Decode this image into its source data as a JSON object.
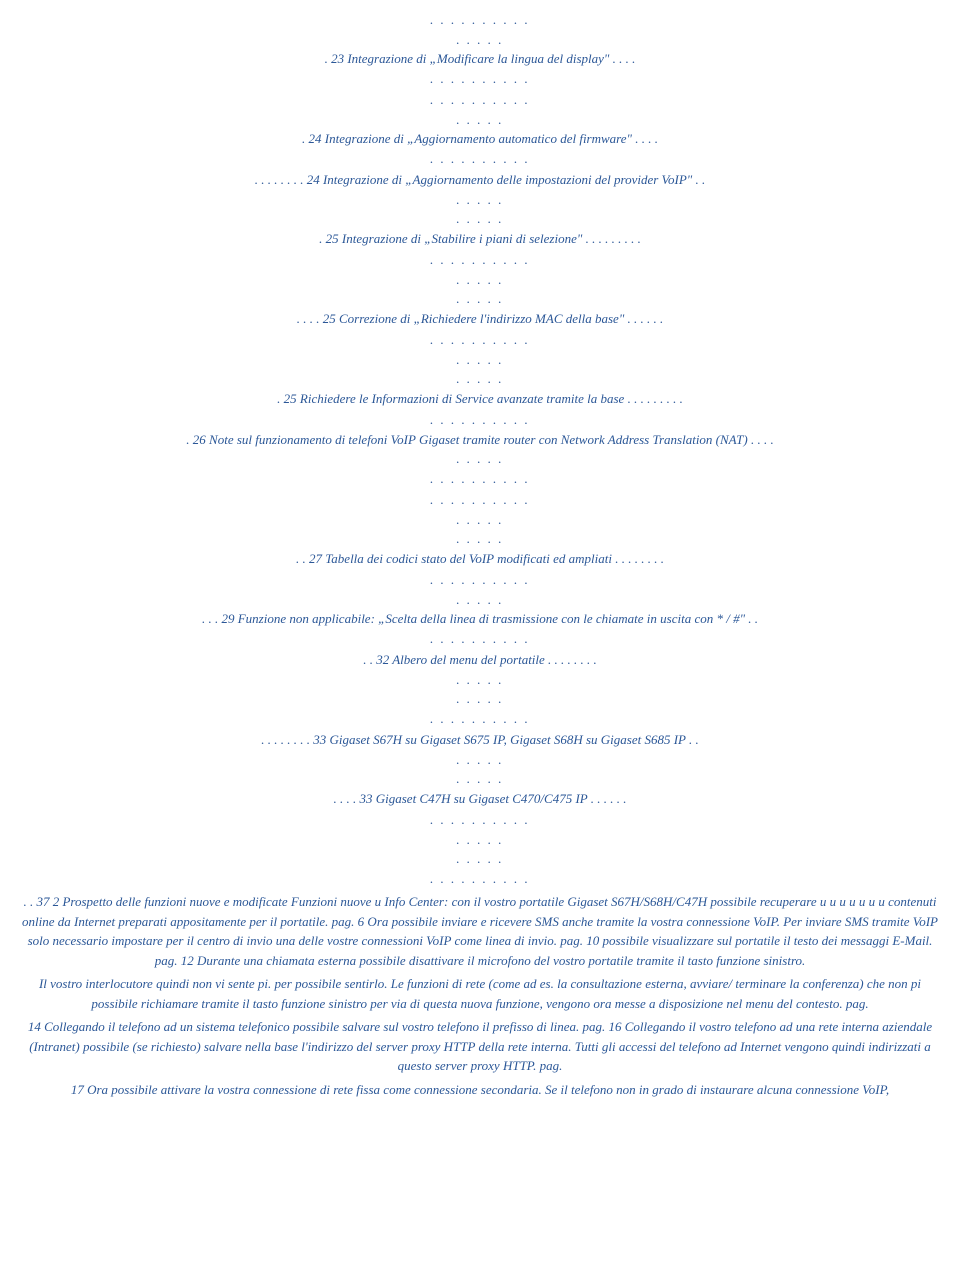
{
  "dots": {
    "long": ". . . . . . . . . .",
    "short": ". . . . ."
  },
  "toc": {
    "line1": ". 23 Integrazione di „Modificare la lingua del display\" . . . .",
    "line2": ". 24 Integrazione di „Aggiornamento automatico del firmware\" . . . .",
    "line3": ". . . . . . . . 24 Integrazione di „Aggiornamento delle impostazioni del provider VoIP\" . .",
    "line4": ". 25 Integrazione di „Stabilire i piani di selezione\" . . . . . . . . .",
    "line5": ". . . . 25 Correzione di „Richiedere l'indirizzo MAC della base\" . . . . . .",
    "line6": ". 25 Richiedere le Informazioni di Service avanzate tramite la base . . . . . . . . .",
    "line7": ". 26 Note sul funzionamento di telefoni VoIP Gigaset tramite router con Network Address Translation (NAT) . . . .",
    "line8": ". . 27 Tabella dei codici stato del VoIP modificati ed ampliati . . . . . . . .",
    "line9": ". . . 29 Funzione non applicabile: „Scelta della linea di trasmissione con le chiamate in uscita con * / #\" . .",
    "line10": ". . 32 Albero del menu del portatile . . . . . . . .",
    "line11": ". . . . . . . . 33 Gigaset S67H su Gigaset S675 IP, Gigaset S68H su Gigaset S685 IP . .",
    "line12": ". . . . 33 Gigaset C47H su Gigaset C470/C475 IP . . . . . ."
  },
  "body": {
    "para1": ". . 37 2 Prospetto delle funzioni nuove e modificate Funzioni nuove u Info Center: con il vostro portatile Gigaset S67H/S68H/C47H possibile recuperare u u u u u u u contenuti online da Internet preparati appositamente per il portatile. pag. 6 Ora possibile inviare e ricevere SMS anche tramite la vostra connessione VoIP. Per inviare SMS tramite VoIP solo necessario impostare per il centro di invio una delle vostre connessioni VoIP come linea di invio. pag. 10 possibile visualizzare sul portatile il testo dei messaggi E-Mail. pag. 12 Durante una chiamata esterna possibile disattivare il microfono del vostro portatile tramite il tasto funzione sinistro.",
    "para2": "Il vostro interlocutore quindi non vi sente pi. per possibile sentirlo. Le funzioni di rete (come ad es. la consultazione esterna, avviare/ terminare la conferenza) che non pi possibile richiamare tramite il tasto funzione sinistro per via di questa nuova funzione, vengono ora messe a disposizione nel menu del contesto. pag.",
    "para3": "14 Collegando il telefono ad un sistema telefonico possibile salvare sul vostro telefono il prefisso di linea. pag. 16 Collegando il vostro telefono ad una rete interna aziendale (Intranet) possibile (se richiesto) salvare nella base l'indirizzo del server proxy HTTP della rete interna. Tutti gli accessi del telefono ad Internet vengono quindi indirizzati a questo server proxy HTTP. pag.",
    "para4": "17 Ora possibile attivare la vostra connessione di rete fissa come connessione secondaria. Se il telefono non in grado di instaurare alcuna connessione VoIP,"
  }
}
